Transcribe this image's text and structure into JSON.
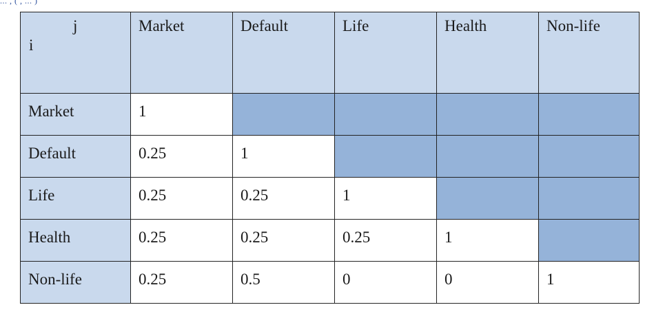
{
  "header_fragment": "... , ( ,   ... )",
  "table": {
    "corner_j": "j",
    "corner_i": "i",
    "columns": [
      "Market",
      "Default",
      "Life",
      "Health",
      "Non-life"
    ],
    "rows": [
      {
        "label": "Market",
        "values": [
          "1",
          "",
          "",
          "",
          ""
        ]
      },
      {
        "label": "Default",
        "values": [
          "0.25",
          "1",
          "",
          "",
          ""
        ]
      },
      {
        "label": "Life",
        "values": [
          "0.25",
          "0.25",
          "1",
          "",
          ""
        ]
      },
      {
        "label": "Health",
        "values": [
          "0.25",
          "0.25",
          "0.25",
          "1",
          ""
        ]
      },
      {
        "label": "Non-life",
        "values": [
          "0.25",
          "0.5",
          "0",
          "0",
          "1"
        ]
      }
    ]
  },
  "colors": {
    "header_fill": "#c9d9ed",
    "upper_triangle_fill": "#95b3d9",
    "cell_fill": "#ffffff",
    "border": "#222222"
  }
}
